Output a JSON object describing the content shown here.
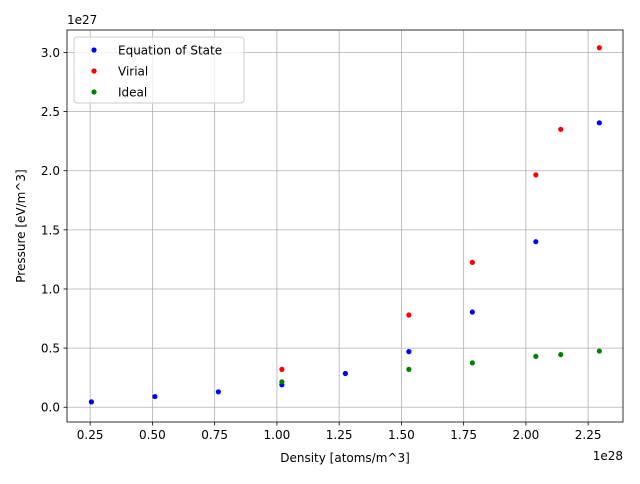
{
  "chart_data": {
    "type": "scatter",
    "xlabel": "Density [atoms/m^3]",
    "ylabel": "Pressure [eV/m^3]",
    "x_offset_label": "1e28",
    "y_offset_label": "1e27",
    "x_scale": 1e+28,
    "y_scale": 1e+27,
    "xlim": [
      0.157,
      2.39
    ],
    "ylim": [
      -0.125,
      3.19
    ],
    "x_ticks": [
      0.25,
      0.5,
      0.75,
      1.0,
      1.25,
      1.5,
      1.75,
      2.0,
      2.25
    ],
    "x_tick_labels": [
      "0.25",
      "0.50",
      "0.75",
      "1.00",
      "1.25",
      "1.50",
      "1.75",
      "2.00",
      "2.25"
    ],
    "y_ticks": [
      0.0,
      0.5,
      1.0,
      1.5,
      2.0,
      2.5,
      3.0
    ],
    "y_tick_labels": [
      "0.0",
      "0.5",
      "1.0",
      "1.5",
      "2.0",
      "2.5",
      "3.0"
    ],
    "grid": true,
    "legend_position": "top-left",
    "series": [
      {
        "name": "Equation of State",
        "color": "#0000ff",
        "x": [
          0.255,
          0.51,
          0.765,
          1.02,
          1.275,
          1.53,
          1.785,
          2.04,
          2.295
        ],
        "y": [
          0.045,
          0.09,
          0.13,
          0.19,
          0.285,
          0.47,
          0.805,
          1.4,
          2.405
        ]
      },
      {
        "name": "Virial",
        "color": "#ff0000",
        "x": [
          1.02,
          1.53,
          1.785,
          2.04,
          2.14,
          2.295
        ],
        "y": [
          0.32,
          0.78,
          1.225,
          1.965,
          2.35,
          3.04
        ]
      },
      {
        "name": "Ideal",
        "color": "#008000",
        "x": [
          1.02,
          1.53,
          1.785,
          2.04,
          2.14,
          2.295
        ],
        "y": [
          0.215,
          0.32,
          0.375,
          0.43,
          0.445,
          0.475
        ]
      }
    ]
  }
}
